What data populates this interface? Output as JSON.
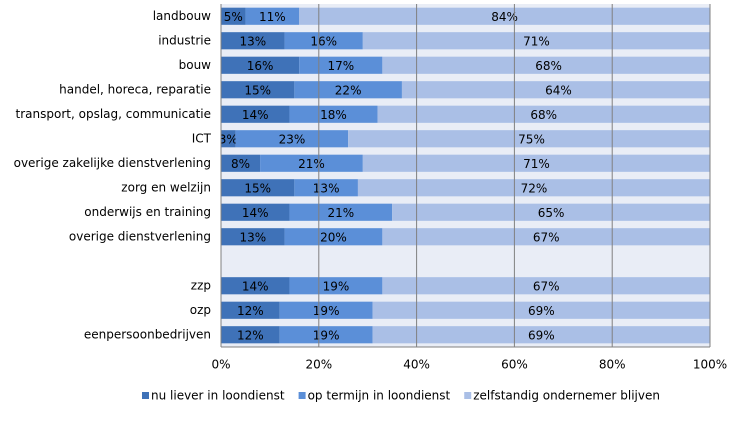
{
  "chart_data": {
    "type": "stacked-barh",
    "categories": [
      "landbouw",
      "industrie",
      "bouw",
      "handel, horeca, reparatie",
      "transport, opslag, communicatie",
      "ICT",
      "overige zakelijke dienstverlening",
      "zorg en welzijn",
      "onderwijs en training",
      "overige dienstverlening",
      null,
      "zzp",
      "ozp",
      "eenpersoonbedrijven"
    ],
    "series": [
      {
        "name": "nu liever in loondienst",
        "color": "#3f72b8",
        "label_color": "#ffffff",
        "values": [
          5,
          13,
          16,
          15,
          14,
          3,
          8,
          15,
          14,
          13,
          null,
          14,
          12,
          12
        ],
        "value_labels": [
          "5%",
          "13%",
          "16%",
          "15%",
          "14%",
          "3%",
          "8%",
          "15%",
          "14%",
          "13%",
          null,
          "14%",
          "12%",
          "12%"
        ]
      },
      {
        "name": "op termijn in loondienst",
        "color": "#5b8fd8",
        "label_color": "#ffffff",
        "values": [
          11,
          16,
          17,
          22,
          18,
          23,
          21,
          13,
          21,
          20,
          null,
          19,
          19,
          19
        ],
        "value_labels": [
          "11%",
          "16%",
          "17%",
          "22%",
          "18%",
          "23%",
          "21%",
          "13%",
          "21%",
          "20%",
          null,
          "19%",
          "19%",
          "19%"
        ]
      },
      {
        "name": "zelfstandig ondernemer blijven",
        "color": "#aabfe6",
        "label_color": "#000000",
        "values": [
          84,
          71,
          68,
          64,
          68,
          75,
          71,
          72,
          65,
          67,
          null,
          67,
          69,
          69
        ],
        "value_labels": [
          "84%",
          "71%",
          "68%",
          "64%",
          "68%",
          "75%",
          "71%",
          "72%",
          "65%",
          "67%",
          null,
          "67%",
          "69%",
          "69%"
        ]
      }
    ],
    "xlim": [
      0,
      100
    ],
    "xticks": [
      {
        "value": 0,
        "label": "0%"
      },
      {
        "value": 20,
        "label": "20%"
      },
      {
        "value": 40,
        "label": "40%"
      },
      {
        "value": 60,
        "label": "60%"
      },
      {
        "value": 80,
        "label": "80%"
      },
      {
        "value": 100,
        "label": "100%"
      }
    ],
    "grid": true,
    "legend": "bottom"
  }
}
